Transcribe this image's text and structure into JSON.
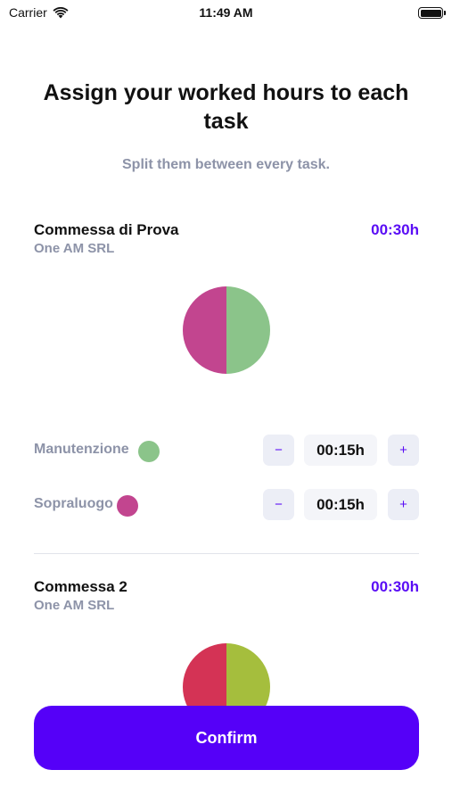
{
  "status_bar": {
    "carrier": "Carrier",
    "time": "11:49 AM"
  },
  "header": {
    "title": "Assign your worked hours to each task",
    "subtitle": "Split them between every task."
  },
  "projects": [
    {
      "name": "Commessa di Prova",
      "client": "One AM SRL",
      "total": "00:30h",
      "pie_slices": [
        {
          "share": 0.5,
          "color": "#8bc48a"
        },
        {
          "share": 0.5,
          "color": "#c2458f"
        }
      ],
      "tasks": [
        {
          "label": "Manutenzione",
          "value": "00:15h",
          "color": "#8bc48a",
          "minus": "−",
          "plus": "+"
        },
        {
          "label": "Sopraluogo",
          "value": "00:15h",
          "color": "#c2458f",
          "minus": "−",
          "plus": "+"
        }
      ]
    },
    {
      "name": "Commessa 2",
      "client": "One AM SRL",
      "total": "00:30h",
      "pie_slices": [
        {
          "share": 0.5,
          "color": "#a5be3d"
        },
        {
          "share": 0.5,
          "color": "#d43355"
        }
      ]
    }
  ],
  "confirm_label": "Confirm"
}
